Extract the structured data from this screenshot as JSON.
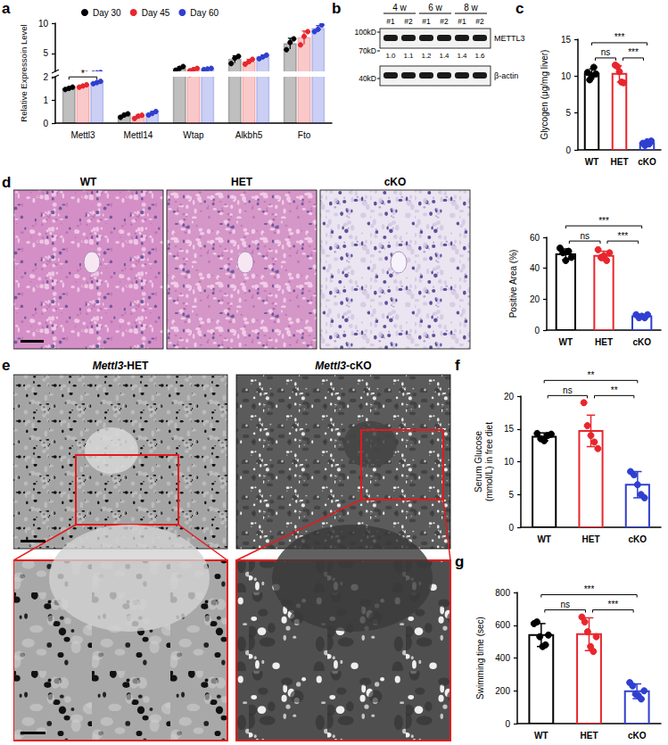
{
  "figure": {
    "panel_labels": [
      "a",
      "b",
      "c",
      "d",
      "e",
      "f",
      "g"
    ],
    "blot": {
      "groups": [
        "4 w",
        "6 w",
        "8 w"
      ],
      "lanes": [
        "#1",
        "#2",
        "#1",
        "#2",
        "#1",
        "#2"
      ],
      "markers": [
        "100kD",
        "70kD",
        "40kD"
      ],
      "proteins": [
        "METTL3",
        "β-actin"
      ],
      "quantification": [
        "1.0",
        "1.1",
        "1.2",
        "1.4",
        "1.4",
        "1.6"
      ]
    },
    "histology": {
      "labels": [
        "WT",
        "HET",
        "cKO"
      ]
    },
    "tem": {
      "labels": [
        "Mettl3-HET",
        "Mettl3-cKO"
      ]
    }
  },
  "chart_data": [
    {
      "type": "bar",
      "y_label": "Relative Expressoin Level",
      "categories": [
        "Mettl3",
        "Mettl14",
        "Wtap",
        "Alkbh5",
        "Fto"
      ],
      "series": [
        {
          "name": "Day 30",
          "color": "#000000",
          "values": [
            1.5,
            0.33,
            2.5,
            4.0,
            6.6
          ],
          "errors": [
            0.05,
            0.08,
            0.3,
            0.6,
            0.9
          ],
          "points": [
            [
              1.45,
              1.5,
              1.55
            ],
            [
              0.25,
              0.35,
              0.4
            ],
            [
              2.2,
              2.5,
              2.8
            ],
            [
              3.3,
              4.2,
              4.5
            ],
            [
              5.6,
              6.8,
              7.4
            ]
          ]
        },
        {
          "name": "Day 45",
          "color": "#e8262d",
          "values": [
            1.6,
            0.28,
            2.3,
            3.6,
            7.6
          ],
          "errors": [
            0.05,
            0.07,
            0.2,
            0.4,
            1.1
          ],
          "points": [
            [
              1.55,
              1.6,
              1.65
            ],
            [
              0.2,
              0.3,
              0.34
            ],
            [
              2.1,
              2.3,
              2.5
            ],
            [
              3.2,
              3.6,
              4.0
            ],
            [
              6.4,
              7.8,
              8.6
            ]
          ]
        },
        {
          "name": "Day 60",
          "color": "#2f3fd0",
          "values": [
            1.75,
            0.42,
            2.4,
            4.4,
            9.1
          ],
          "errors": [
            0.05,
            0.08,
            0.1,
            0.3,
            0.5
          ],
          "points": [
            [
              1.7,
              1.75,
              1.8
            ],
            [
              0.35,
              0.42,
              0.5
            ],
            [
              2.3,
              2.4,
              2.5
            ],
            [
              4.1,
              4.4,
              4.7
            ],
            [
              8.6,
              9.0,
              9.7
            ]
          ]
        }
      ],
      "ylim": [
        0,
        10
      ],
      "yticks": [
        0,
        1,
        2,
        5,
        10
      ],
      "y_break": 2,
      "legend": "top",
      "grid": false,
      "annotations": [
        {
          "category": "Mettl3",
          "pair": [
            "Day 30",
            "Day 60"
          ],
          "label": "*"
        }
      ]
    },
    {
      "type": "bar",
      "y_label": "Glycogen (μg/mg liver)",
      "categories": [
        "WT",
        "HET",
        "cKO"
      ],
      "colors": [
        "#000000",
        "#e8262d",
        "#2f3fd0"
      ],
      "values": [
        10.3,
        10.3,
        0.9
      ],
      "errors": [
        0.7,
        1.1,
        0.3
      ],
      "points": [
        [
          10.5,
          9.5,
          10.0,
          11.2,
          10.3
        ],
        [
          11.5,
          11.3,
          10.6,
          9.2,
          9.1
        ],
        [
          0.9,
          0.6,
          1.1,
          0.8,
          1.2
        ]
      ],
      "ylim": [
        0,
        15
      ],
      "yticks": [
        0,
        5,
        10,
        15
      ],
      "grid": false,
      "annotations": [
        {
          "pair": [
            "WT",
            "cKO"
          ],
          "label": "***"
        },
        {
          "pair": [
            "WT",
            "HET"
          ],
          "label": "ns"
        },
        {
          "pair": [
            "HET",
            "cKO"
          ],
          "label": "***"
        }
      ]
    },
    {
      "type": "bar",
      "y_label": "Positive Area (%)",
      "categories": [
        "WT",
        "HET",
        "cKO"
      ],
      "colors": [
        "#000000",
        "#e8262d",
        "#2f3fd0"
      ],
      "values": [
        49,
        48,
        9
      ],
      "errors": [
        3.5,
        3,
        1
      ],
      "points": [
        [
          53,
          50,
          45,
          51,
          47
        ],
        [
          52,
          47,
          48,
          45,
          50
        ],
        [
          10,
          8,
          9,
          8,
          10
        ]
      ],
      "ylim": [
        0,
        60
      ],
      "yticks": [
        0,
        20,
        40,
        60
      ],
      "grid": false,
      "annotations": [
        {
          "pair": [
            "WT",
            "cKO"
          ],
          "label": "***"
        },
        {
          "pair": [
            "WT",
            "HET"
          ],
          "label": "ns"
        },
        {
          "pair": [
            "HET",
            "cKO"
          ],
          "label": "***"
        }
      ]
    },
    {
      "type": "bar",
      "y_label": "Serum Glucose\n(mmol/L) in free diet",
      "categories": [
        "WT",
        "HET",
        "cKO"
      ],
      "colors": [
        "#000000",
        "#e8262d",
        "#2f3fd0"
      ],
      "values": [
        13.8,
        14.7,
        6.5
      ],
      "errors": [
        0.6,
        2.4,
        2.0
      ],
      "points": [
        [
          14.3,
          13.5,
          13.2,
          14.0,
          14.2
        ],
        [
          19.0,
          15.5,
          14.0,
          13.0,
          12.0
        ],
        [
          8.5,
          8.0,
          6.5,
          5.0,
          4.5
        ]
      ],
      "ylim": [
        0,
        20
      ],
      "yticks": [
        0,
        5,
        10,
        15,
        20
      ],
      "grid": false,
      "annotations": [
        {
          "pair": [
            "WT",
            "cKO"
          ],
          "label": "**"
        },
        {
          "pair": [
            "WT",
            "HET"
          ],
          "label": "ns"
        },
        {
          "pair": [
            "HET",
            "cKO"
          ],
          "label": "**"
        }
      ]
    },
    {
      "type": "bar",
      "y_label": "Swimming time (sec)",
      "categories": [
        "WT",
        "HET",
        "cKO"
      ],
      "colors": [
        "#000000",
        "#e8262d",
        "#2f3fd0"
      ],
      "values": [
        540,
        545,
        197
      ],
      "errors": [
        70,
        100,
        45
      ],
      "points": [
        [
          610,
          620,
          530,
          470,
          480,
          540
        ],
        [
          650,
          620,
          560,
          470,
          440,
          530
        ],
        [
          250,
          230,
          180,
          170,
          150,
          200
        ]
      ],
      "ylim": [
        0,
        800
      ],
      "yticks": [
        0,
        200,
        400,
        600,
        800
      ],
      "grid": false,
      "annotations": [
        {
          "pair": [
            "WT",
            "cKO"
          ],
          "label": "***"
        },
        {
          "pair": [
            "WT",
            "HET"
          ],
          "label": "ns"
        },
        {
          "pair": [
            "HET",
            "cKO"
          ],
          "label": "***"
        }
      ]
    }
  ]
}
